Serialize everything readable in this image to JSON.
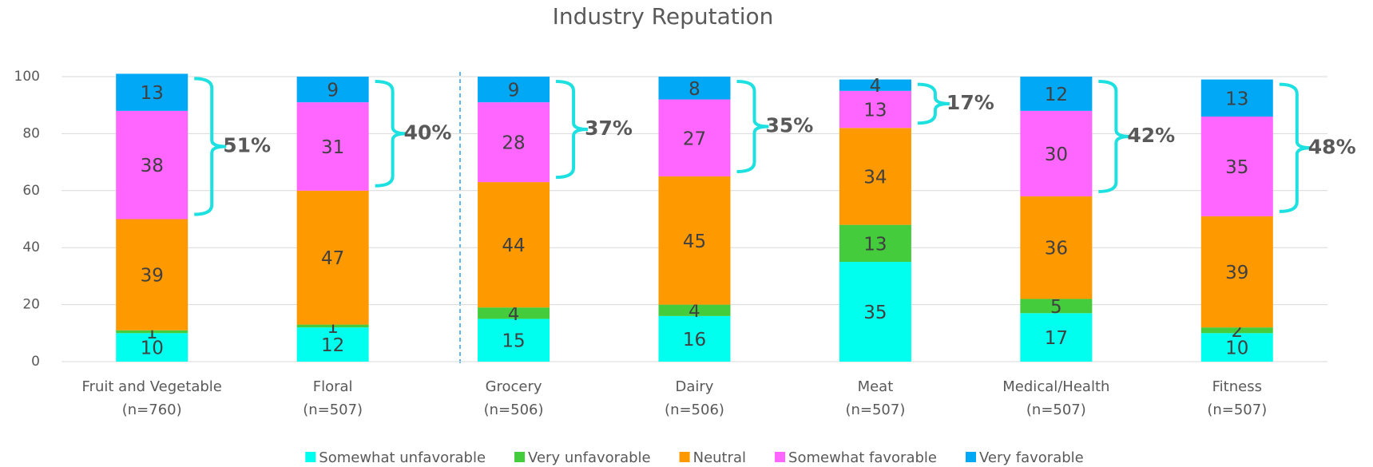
{
  "chart_data": {
    "type": "stacked_bar",
    "title": "Industry Reputation",
    "categories": [
      "Fruit and Vegetable",
      "Floral",
      "Grocery",
      "Dairy",
      "Meat",
      "Medical/Health",
      "Fitness"
    ],
    "category_notes": [
      "(n=760)",
      "(n=507)",
      "(n=506)",
      "(n=506)",
      "(n=507)",
      "(n=507)",
      "(n=507)"
    ],
    "series": [
      {
        "name": "Somewhat unfavorable",
        "color": "#00ffee",
        "values": [
          10,
          12,
          15,
          16,
          35,
          17,
          10
        ]
      },
      {
        "name": "Very unfavorable",
        "color": "#44cc3c",
        "values": [
          1,
          1,
          4,
          4,
          13,
          5,
          2
        ]
      },
      {
        "name": "Neutral",
        "color": "#ff9900",
        "values": [
          39,
          47,
          44,
          45,
          34,
          36,
          39
        ]
      },
      {
        "name": "Somewhat favorable",
        "color": "#ff66ff",
        "values": [
          38,
          31,
          28,
          27,
          13,
          30,
          35
        ]
      },
      {
        "name": "Very favorable",
        "color": "#00a8f5",
        "values": [
          13,
          9,
          9,
          8,
          4,
          12,
          13
        ]
      }
    ],
    "favorable_totals": [
      51,
      40,
      37,
      35,
      17,
      42,
      48
    ],
    "favorable_total_labels": [
      "51%",
      "40%",
      "37%",
      "35%",
      "17%",
      "42%",
      "48%"
    ],
    "bracket_color": "#1de0e0",
    "ylim": [
      0,
      100
    ],
    "yticks": [
      0,
      20,
      40,
      60,
      80,
      100
    ],
    "grid": true
  }
}
